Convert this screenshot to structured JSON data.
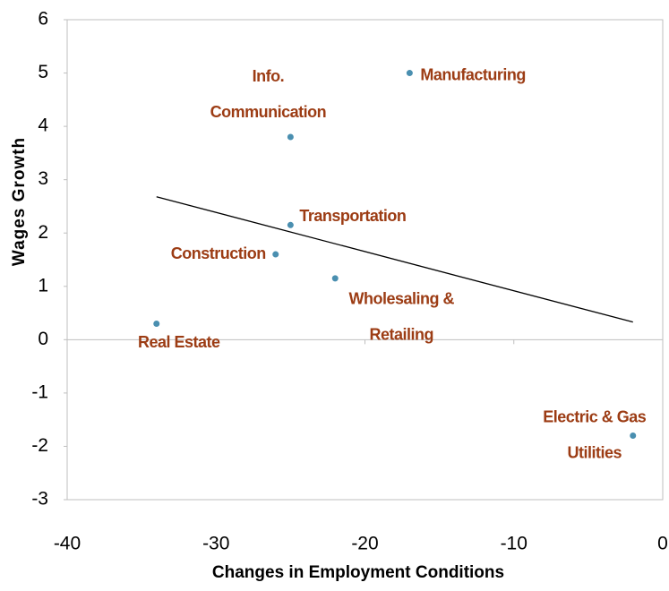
{
  "chart_data": {
    "type": "scatter",
    "xlabel": "Changes in Employment Conditions",
    "ylabel": "Wages Growth",
    "labels": [
      [
        "Real Estate"
      ],
      [
        "Construction"
      ],
      [
        "Transportation"
      ],
      [
        "Info.",
        "Communication"
      ],
      [
        "Manufacturing"
      ],
      [
        "Wholesaling &",
        "Retailing"
      ],
      [
        "Electric & Gas",
        "Utilities"
      ]
    ],
    "x": [
      -34,
      -26,
      -25,
      -25,
      -17,
      -22,
      -2
    ],
    "y": [
      0.3,
      1.6,
      2.15,
      3.8,
      5.0,
      1.15,
      -1.8
    ],
    "color": "#4a8fb0",
    "label_color": "#9c3c14",
    "trendline": {
      "x": [
        -34,
        -2
      ],
      "y": [
        2.68,
        0.33
      ],
      "color": "#000000"
    },
    "xlim": [
      -40,
      0
    ],
    "xticks": [
      -40,
      -30,
      -20,
      -10,
      0
    ],
    "ylim": [
      -3,
      6
    ],
    "yticks": [
      -3,
      -2,
      -1,
      0,
      1,
      2,
      3,
      4,
      5,
      6
    ],
    "grid": false
  }
}
